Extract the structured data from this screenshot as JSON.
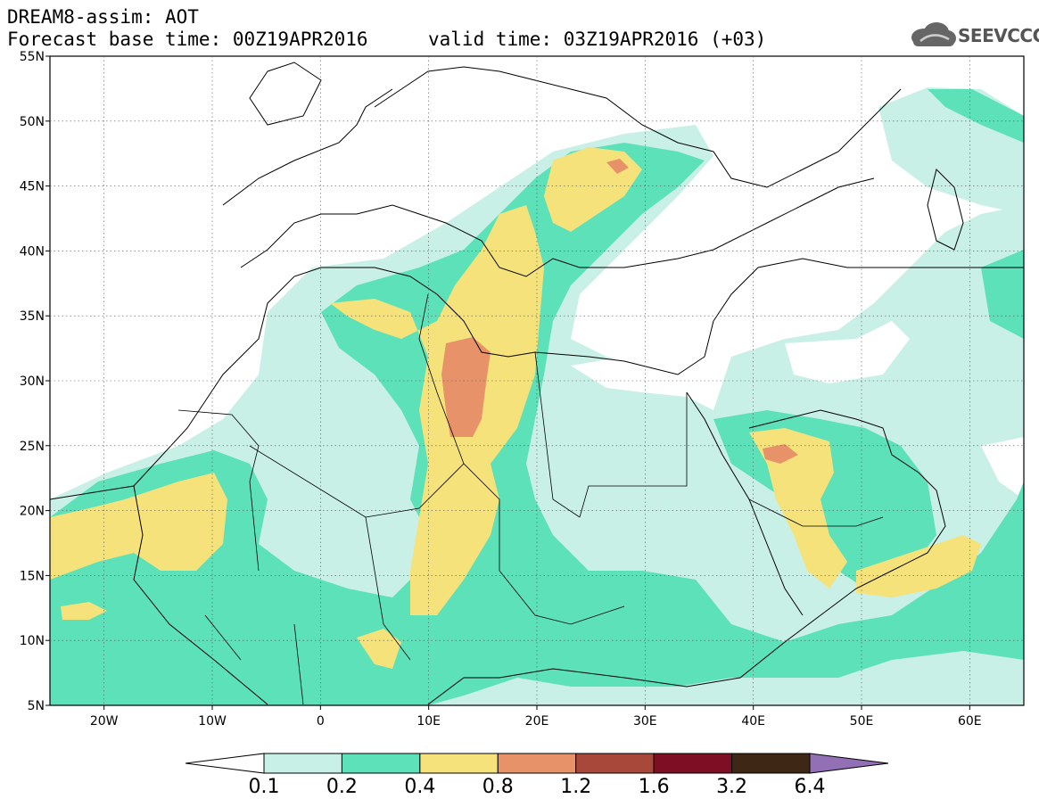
{
  "title": {
    "line1": "DREAM8-assim: AOT",
    "line2": "Forecast base time: 00Z19APR2016",
    "valid": "valid time: 03Z19APR2016 (+03)"
  },
  "logo": {
    "text": "SEEVCCC",
    "icon": "cloud-icon"
  },
  "map": {
    "lon_range": [
      -25,
      65
    ],
    "lat_range": [
      5,
      55
    ],
    "lat_labels": [
      "55N",
      "50N",
      "45N",
      "40N",
      "35N",
      "30N",
      "25N",
      "20N",
      "15N",
      "10N",
      "5N"
    ],
    "lon_labels": [
      "20W",
      "10W",
      "0",
      "10E",
      "20E",
      "30E",
      "40E",
      "50E",
      "60E"
    ],
    "grid": true
  },
  "legend": {
    "colors": [
      "#ffffff",
      "#c8f0e6",
      "#5ce1b9",
      "#f5e27b",
      "#e8926a",
      "#a8483a",
      "#7e0e24",
      "#3e2715",
      "#9370b6"
    ],
    "labels": [
      "0.1",
      "0.2",
      "0.4",
      "0.8",
      "1.2",
      "1.6",
      "3.2",
      "6.4"
    ]
  }
}
